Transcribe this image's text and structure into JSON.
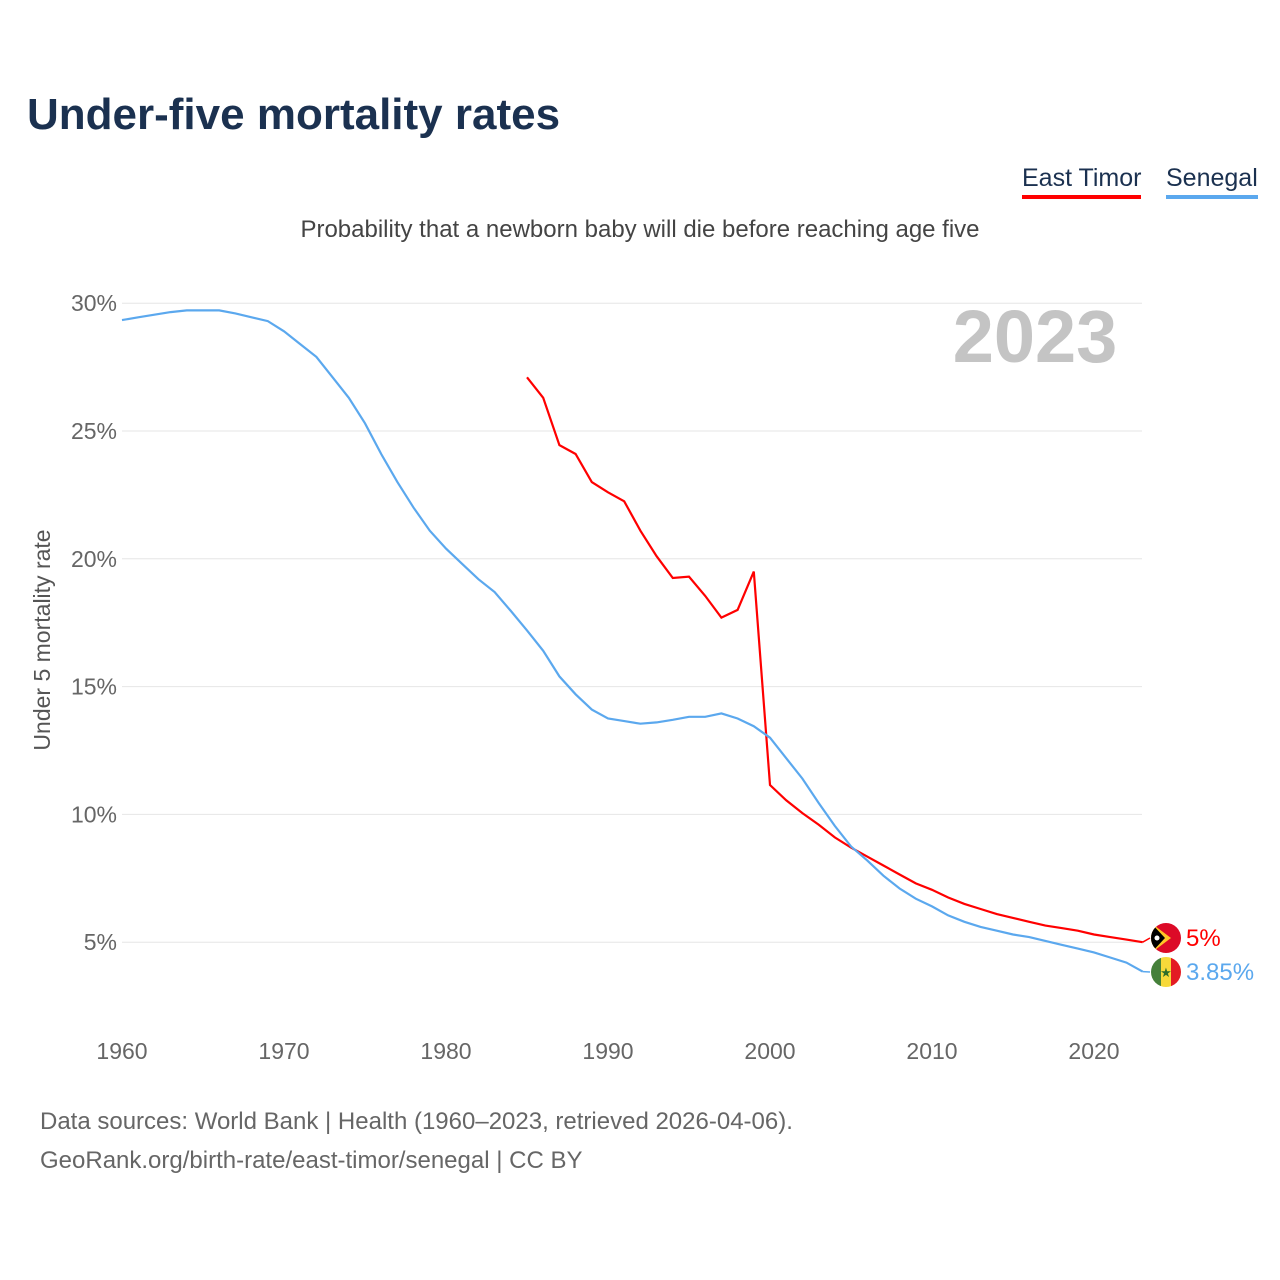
{
  "title": "Under-five mortality rates",
  "subtitle": "Probability that a newborn baby will die before reaching age five",
  "sources_line1": "Data sources: World Bank | Health (1960–2023, retrieved 2026-04-06).",
  "sources_line2": "GeoRank.org/birth-rate/east-timor/senegal | CC BY",
  "chart_data": {
    "type": "line",
    "title": "Under-five mortality rates",
    "ylabel": "Under 5 mortality rate",
    "xlabel": "",
    "year_label": "2023",
    "xlim": [
      1960,
      2023
    ],
    "ylim": [
      0,
      30
    ],
    "x_ticks": [
      "1960",
      "1970",
      "1980",
      "1990",
      "2000",
      "2010",
      "2020"
    ],
    "y_ticks": [
      "5%",
      "10%",
      "15%",
      "20%",
      "25%",
      "30%"
    ],
    "grid": true,
    "legend_placement": "top-right",
    "series": [
      {
        "name": "East Timor",
        "color": "#ff0000",
        "end_label": "5%",
        "start_year": 1985,
        "values": [
          27.1,
          26.3,
          24.45,
          24.1,
          23.0,
          22.6,
          22.25,
          21.1,
          20.1,
          19.25,
          19.3,
          18.55,
          17.7,
          18.0,
          19.5,
          11.15,
          10.55,
          10.05,
          9.6,
          9.1,
          8.7,
          8.35,
          8.0,
          7.65,
          7.3,
          7.05,
          6.75,
          6.5,
          6.3,
          6.1,
          5.95,
          5.8,
          5.65,
          5.55,
          5.45,
          5.3,
          5.2,
          5.1,
          5.0
        ]
      },
      {
        "name": "Senegal",
        "color": "#5ba8ee",
        "end_label": "3.85%",
        "start_year": 1960,
        "values": [
          29.34,
          29.45,
          29.55,
          29.65,
          29.72,
          29.72,
          29.72,
          29.6,
          29.45,
          29.3,
          28.9,
          28.4,
          27.9,
          27.1,
          26.3,
          25.3,
          24.1,
          23.0,
          22.0,
          21.1,
          20.4,
          19.8,
          19.2,
          18.7,
          17.96,
          17.2,
          16.4,
          15.4,
          14.7,
          14.1,
          13.75,
          13.65,
          13.55,
          13.6,
          13.7,
          13.82,
          13.82,
          13.95,
          13.75,
          13.45,
          13.0,
          12.2,
          11.4,
          10.45,
          9.55,
          8.75,
          8.2,
          7.6,
          7.1,
          6.7,
          6.4,
          6.05,
          5.8,
          5.6,
          5.45,
          5.3,
          5.2,
          5.05,
          4.9,
          4.75,
          4.6,
          4.4,
          4.2,
          3.85
        ]
      }
    ]
  }
}
